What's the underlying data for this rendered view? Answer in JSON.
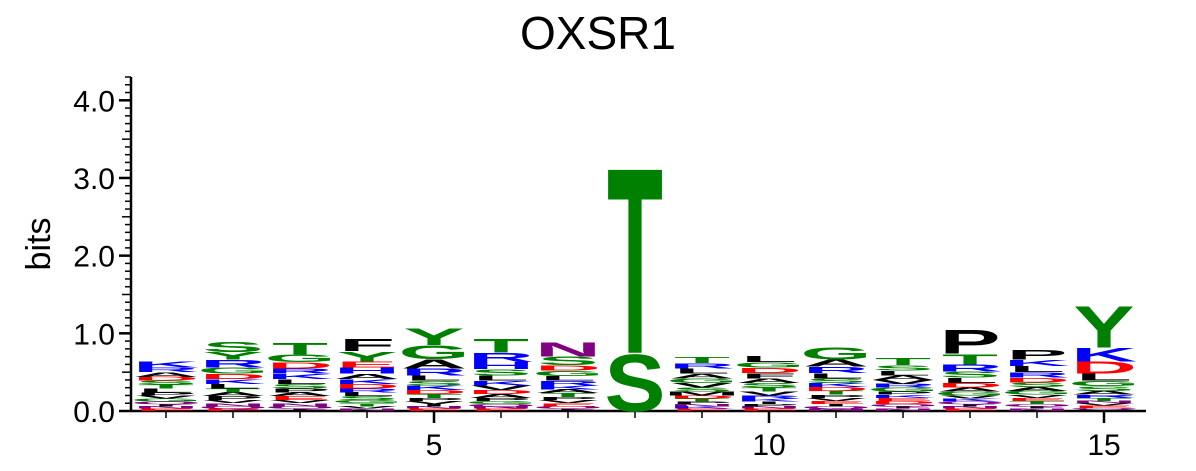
{
  "chart_data": {
    "type": "sequence-logo",
    "title": "OXSR1",
    "ylabel": "bits",
    "ylim": [
      0,
      4.3
    ],
    "y_ticks": [
      "0.0",
      "1.0",
      "2.0",
      "3.0",
      "4.0"
    ],
    "y_tick_values": [
      0,
      1,
      2,
      3,
      4
    ],
    "x_ticks": [
      "5",
      "10",
      "15"
    ],
    "x_tick_values": [
      5,
      10,
      15
    ],
    "positions": [
      1,
      2,
      3,
      4,
      5,
      6,
      7,
      8,
      9,
      10,
      11,
      12,
      13,
      14,
      15
    ],
    "colors": {
      "A": "#000000",
      "F": "#000000",
      "I": "#000000",
      "L": "#000000",
      "M": "#000000",
      "P": "#000000",
      "V": "#000000",
      "W": "#000000",
      "G": "#008000",
      "S": "#008000",
      "T": "#008000",
      "Y": "#008000",
      "C": "#008000",
      "K": "#0000ff",
      "R": "#0000ff",
      "H": "#0000ff",
      "D": "#ff0000",
      "E": "#ff0000",
      "N": "#800080",
      "Q": "#800080"
    },
    "columns": [
      [
        [
          "A",
          0.06
        ],
        [
          "K",
          0.08
        ],
        [
          "R",
          0.06
        ],
        [
          "L",
          0.05
        ],
        [
          "T",
          0.05
        ],
        [
          "S",
          0.05
        ],
        [
          "D",
          0.05
        ],
        [
          "G",
          0.04
        ],
        [
          "V",
          0.04
        ],
        [
          "P",
          0.04
        ],
        [
          "E",
          0.03
        ],
        [
          "N",
          0.03
        ],
        [
          "I",
          0.03
        ],
        [
          "Q",
          0.03
        ]
      ],
      [
        [
          "S",
          0.14
        ],
        [
          "R",
          0.1
        ],
        [
          "Y",
          0.1
        ],
        [
          "G",
          0.08
        ],
        [
          "D",
          0.07
        ],
        [
          "L",
          0.06
        ],
        [
          "K",
          0.06
        ],
        [
          "P",
          0.05
        ],
        [
          "A",
          0.05
        ],
        [
          "T",
          0.05
        ],
        [
          "N",
          0.04
        ],
        [
          "V",
          0.04
        ],
        [
          "E",
          0.03
        ],
        [
          "Q",
          0.03
        ]
      ],
      [
        [
          "T",
          0.15
        ],
        [
          "G",
          0.1
        ],
        [
          "D",
          0.08
        ],
        [
          "K",
          0.07
        ],
        [
          "R",
          0.07
        ],
        [
          "S",
          0.06
        ],
        [
          "L",
          0.06
        ],
        [
          "E",
          0.05
        ],
        [
          "A",
          0.05
        ],
        [
          "P",
          0.05
        ],
        [
          "N",
          0.04
        ],
        [
          "V",
          0.04
        ],
        [
          "I",
          0.03
        ],
        [
          "Q",
          0.03
        ]
      ],
      [
        [
          "F",
          0.16
        ],
        [
          "Y",
          0.13
        ],
        [
          "H",
          0.08
        ],
        [
          "E",
          0.08
        ],
        [
          "A",
          0.07
        ],
        [
          "D",
          0.06
        ],
        [
          "K",
          0.06
        ],
        [
          "S",
          0.05
        ],
        [
          "L",
          0.05
        ],
        [
          "R",
          0.05
        ],
        [
          "T",
          0.04
        ],
        [
          "G",
          0.04
        ],
        [
          "N",
          0.03
        ],
        [
          "V",
          0.03
        ]
      ],
      [
        [
          "Y",
          0.22
        ],
        [
          "G",
          0.18
        ],
        [
          "A",
          0.12
        ],
        [
          "R",
          0.09
        ],
        [
          "L",
          0.07
        ],
        [
          "K",
          0.06
        ],
        [
          "S",
          0.06
        ],
        [
          "T",
          0.05
        ],
        [
          "D",
          0.05
        ],
        [
          "V",
          0.04
        ],
        [
          "P",
          0.04
        ],
        [
          "E",
          0.03
        ],
        [
          "N",
          0.03
        ],
        [
          "I",
          0.03
        ]
      ],
      [
        [
          "T",
          0.18
        ],
        [
          "R",
          0.12
        ],
        [
          "H",
          0.09
        ],
        [
          "S",
          0.08
        ],
        [
          "L",
          0.07
        ],
        [
          "V",
          0.06
        ],
        [
          "K",
          0.06
        ],
        [
          "A",
          0.05
        ],
        [
          "D",
          0.05
        ],
        [
          "G",
          0.04
        ],
        [
          "P",
          0.04
        ],
        [
          "E",
          0.03
        ],
        [
          "N",
          0.03
        ],
        [
          "Q",
          0.03
        ]
      ],
      [
        [
          "N",
          0.19
        ],
        [
          "S",
          0.11
        ],
        [
          "G",
          0.07
        ],
        [
          "D",
          0.07
        ],
        [
          "R",
          0.06
        ],
        [
          "L",
          0.06
        ],
        [
          "T",
          0.05
        ],
        [
          "A",
          0.05
        ],
        [
          "K",
          0.05
        ],
        [
          "E",
          0.04
        ],
        [
          "V",
          0.04
        ],
        [
          "P",
          0.04
        ],
        [
          "I",
          0.03
        ],
        [
          "Q",
          0.03
        ]
      ],
      [
        [
          "T",
          2.45
        ],
        [
          "S",
          0.75
        ]
      ],
      [
        [
          "T",
          0.08
        ],
        [
          "L",
          0.07
        ],
        [
          "R",
          0.07
        ],
        [
          "V",
          0.06
        ],
        [
          "G",
          0.06
        ],
        [
          "A",
          0.06
        ],
        [
          "M",
          0.05
        ],
        [
          "S",
          0.05
        ],
        [
          "T",
          0.04
        ],
        [
          "D",
          0.04
        ],
        [
          "E",
          0.03
        ],
        [
          "K",
          0.03
        ],
        [
          "N",
          0.03
        ],
        [
          "P",
          0.03
        ]
      ],
      [
        [
          "L",
          0.08
        ],
        [
          "F",
          0.07
        ],
        [
          "D",
          0.07
        ],
        [
          "G",
          0.07
        ],
        [
          "S",
          0.06
        ],
        [
          "A",
          0.06
        ],
        [
          "V",
          0.05
        ],
        [
          "T",
          0.05
        ],
        [
          "K",
          0.04
        ],
        [
          "R",
          0.04
        ],
        [
          "E",
          0.03
        ],
        [
          "N",
          0.03
        ],
        [
          "P",
          0.03
        ],
        [
          "I",
          0.03
        ]
      ],
      [
        [
          "G",
          0.16
        ],
        [
          "A",
          0.09
        ],
        [
          "R",
          0.08
        ],
        [
          "L",
          0.07
        ],
        [
          "S",
          0.06
        ],
        [
          "T",
          0.05
        ],
        [
          "D",
          0.05
        ],
        [
          "K",
          0.05
        ],
        [
          "E",
          0.04
        ],
        [
          "V",
          0.04
        ],
        [
          "P",
          0.04
        ],
        [
          "N",
          0.03
        ],
        [
          "Q",
          0.03
        ],
        [
          "I",
          0.03
        ]
      ],
      [
        [
          "T",
          0.09
        ],
        [
          "S",
          0.07
        ],
        [
          "A",
          0.06
        ],
        [
          "L",
          0.06
        ],
        [
          "G",
          0.05
        ],
        [
          "R",
          0.05
        ],
        [
          "V",
          0.05
        ],
        [
          "D",
          0.04
        ],
        [
          "E",
          0.04
        ],
        [
          "K",
          0.04
        ],
        [
          "P",
          0.04
        ],
        [
          "N",
          0.03
        ],
        [
          "I",
          0.03
        ],
        [
          "Q",
          0.03
        ]
      ],
      [
        [
          "P",
          0.32
        ],
        [
          "T",
          0.14
        ],
        [
          "R",
          0.09
        ],
        [
          "S",
          0.08
        ],
        [
          "L",
          0.07
        ],
        [
          "D",
          0.06
        ],
        [
          "G",
          0.05
        ],
        [
          "A",
          0.05
        ],
        [
          "K",
          0.04
        ],
        [
          "V",
          0.04
        ],
        [
          "E",
          0.03
        ],
        [
          "N",
          0.03
        ],
        [
          "I",
          0.03
        ],
        [
          "Q",
          0.03
        ]
      ],
      [
        [
          "P",
          0.13
        ],
        [
          "L",
          0.08
        ],
        [
          "K",
          0.08
        ],
        [
          "R",
          0.07
        ],
        [
          "S",
          0.06
        ],
        [
          "D",
          0.06
        ],
        [
          "G",
          0.05
        ],
        [
          "A",
          0.05
        ],
        [
          "T",
          0.04
        ],
        [
          "E",
          0.04
        ],
        [
          "V",
          0.04
        ],
        [
          "N",
          0.03
        ],
        [
          "I",
          0.03
        ],
        [
          "Q",
          0.03
        ]
      ],
      [
        [
          "Y",
          0.55
        ],
        [
          "K",
          0.18
        ],
        [
          "D",
          0.16
        ],
        [
          "L",
          0.09
        ],
        [
          "G",
          0.07
        ],
        [
          "S",
          0.06
        ],
        [
          "A",
          0.05
        ],
        [
          "T",
          0.04
        ],
        [
          "R",
          0.04
        ],
        [
          "E",
          0.03
        ],
        [
          "V",
          0.03
        ],
        [
          "N",
          0.03
        ],
        [
          "P",
          0.02
        ],
        [
          "Q",
          0.02
        ]
      ]
    ]
  }
}
